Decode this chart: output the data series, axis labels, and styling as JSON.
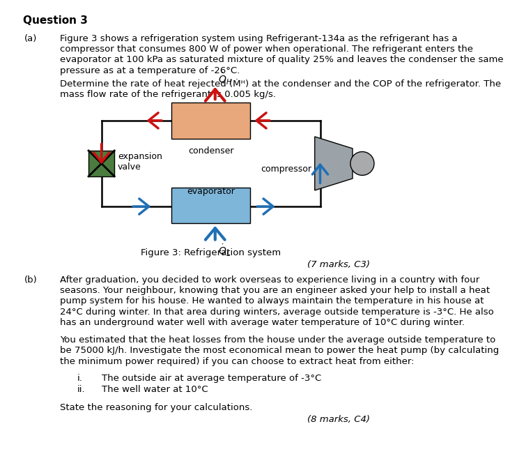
{
  "title": "Question 3",
  "background_color": "#ffffff",
  "part_a_label": "(a)",
  "part_b_label": "(b)",
  "text_a_para1": [
    "Figure 3 shows a refrigeration system using Refrigerant-134a as the refrigerant has a",
    "compressor that consumes 800 W of power when operational. The refrigerant enters the",
    "evaporator at 100 kPa as saturated mixture of quality 25% and leaves the condenser the same",
    "pressure as at a temperature of -26°C."
  ],
  "text_a_para2": [
    "Determine the rate of heat rejected (Ṁᴴ) at the condenser and the COP of the refrigerator. The",
    "mass flow rate of the refrigerant is 0.005 kg/s."
  ],
  "figure_caption": "Figure 3: Refrigeration system",
  "marks_a": "(7 marks, C3)",
  "text_b_para1": [
    "After graduation, you decided to work overseas to experience living in a country with four",
    "seasons. Your neighbour, knowing that you are an engineer asked your help to install a heat",
    "pump system for his house. He wanted to always maintain the temperature in his house at",
    "24°C during winter. In that area during winters, average outside temperature is -3°C. He also",
    "has an underground water well with average water temperature of 10°C during winter."
  ],
  "text_b_para2": [
    "You estimated that the heat losses from the house under the average outside temperature to",
    "be 75000 kJ/h. Investigate the most economical mean to power the heat pump (by calculating",
    "the minimum power required) if you can choose to extract heat from either:"
  ],
  "items": [
    "The outside air at average temperature of -3°C",
    "The well water at 10°C"
  ],
  "item_labels": [
    "i.",
    "ii."
  ],
  "text_b_final": "State the reasoning for your calculations.",
  "marks_b": "(8 marks, C4)",
  "condenser_color": "#E8A87C",
  "evaporator_color": "#7EB6D9",
  "expansion_valve_color": "#4A7C3F",
  "compressor_body_color": "#9BA3A8",
  "compressor_cap_color": "#A8AAAC",
  "arrow_red": "#CC1111",
  "arrow_blue": "#1F6FB5",
  "loop_color": "#000000"
}
